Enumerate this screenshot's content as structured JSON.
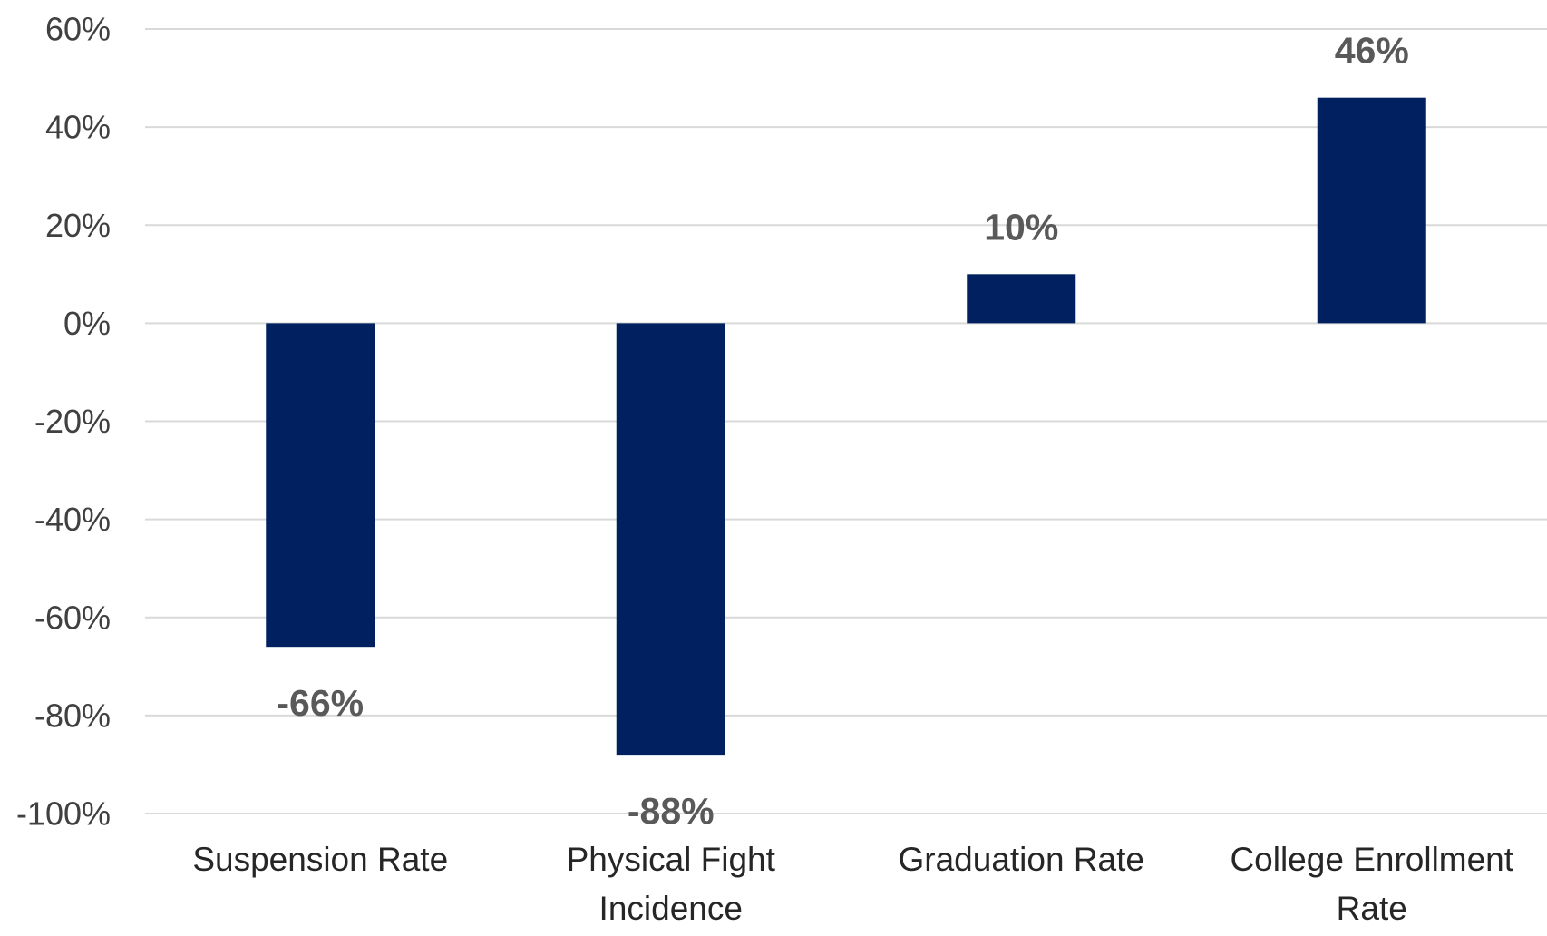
{
  "chart_data": {
    "type": "bar",
    "title": "",
    "xlabel": "",
    "ylabel": "",
    "categories": [
      [
        "Suspension Rate"
      ],
      [
        "Physical Fight",
        "Incidence"
      ],
      [
        "Graduation Rate"
      ],
      [
        "College Enrollment",
        "Rate"
      ]
    ],
    "values": [
      -66,
      -88,
      10,
      46
    ],
    "data_labels": [
      "-66%",
      "-88%",
      "10%",
      "46%"
    ],
    "ylim": [
      -100,
      60
    ],
    "yticks": [
      60,
      40,
      20,
      0,
      -20,
      -40,
      -60,
      -80,
      -100
    ],
    "ytick_labels": [
      "60%",
      "40%",
      "20%",
      "0%",
      "-20%",
      "-40%",
      "-60%",
      "-80%",
      "-100%"
    ],
    "grid": true,
    "legend": "none",
    "colors": {
      "bar": "#002060",
      "gridline": "#d9d9d9",
      "data_label": "#595959",
      "tick_label": "#404040",
      "category_label": "#262626"
    }
  }
}
